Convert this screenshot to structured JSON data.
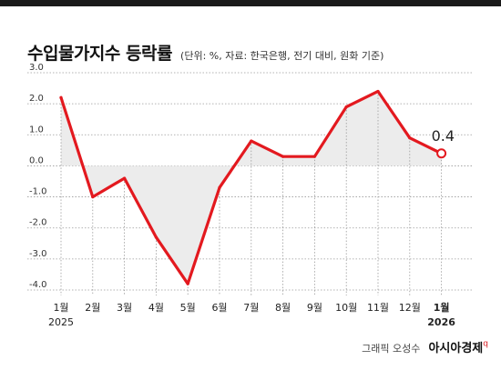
{
  "header": {
    "title": "수입물가지수 등락률",
    "subtitle": "(단위: %, 자료: 한국은행, 전기 대비, 원화 기준)"
  },
  "footer": {
    "credit": "그래픽 오성수",
    "brand": "아시아경제"
  },
  "colors": {
    "line": "#e3191f",
    "fill": "#ececec",
    "grid": "#9a9a9a"
  },
  "chart_data": {
    "type": "line",
    "title": "수입물가지수 등락률",
    "ylim": [
      -4.0,
      3.0
    ],
    "yticks": [
      "3.0",
      "2.0",
      "1.0",
      "0.0",
      "-1.0",
      "-2.0",
      "-3.0",
      "-4.0"
    ],
    "categories": [
      "1월",
      "2월",
      "3월",
      "4월",
      "5월",
      "6월",
      "7월",
      "8월",
      "9월",
      "10월",
      "11월",
      "12월",
      "1월"
    ],
    "year_labels": [
      {
        "index": 0,
        "text": "2025"
      },
      {
        "index": 12,
        "text": "2026"
      }
    ],
    "values": [
      2.2,
      -1.0,
      -0.4,
      -2.3,
      -3.8,
      -0.7,
      0.8,
      0.3,
      0.3,
      1.9,
      2.4,
      0.9,
      0.4
    ],
    "annotation": {
      "index": 12,
      "text": "0.4"
    },
    "grid": true
  }
}
